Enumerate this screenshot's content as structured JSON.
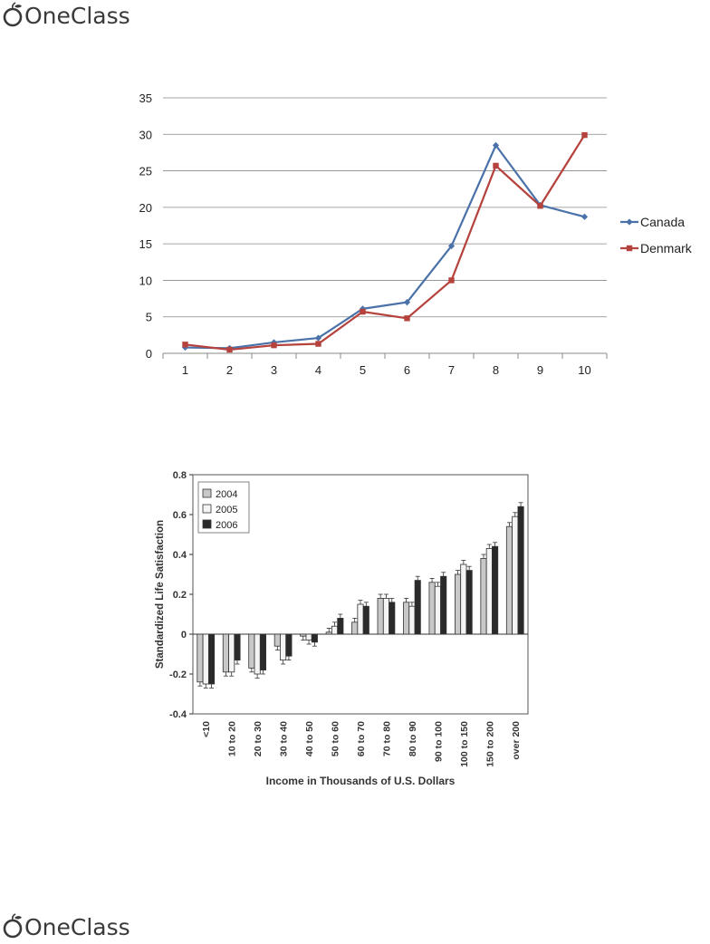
{
  "header": {
    "logo_text": "OneClass"
  },
  "footer": {
    "logo_text": "OneClass"
  },
  "chart_data": [
    {
      "type": "line",
      "x": [
        1,
        2,
        3,
        4,
        5,
        6,
        7,
        8,
        9,
        10
      ],
      "ylim": [
        0,
        35
      ],
      "yticks": [
        0,
        5,
        10,
        15,
        20,
        25,
        30,
        35
      ],
      "grid": true,
      "legend": "right",
      "series": [
        {
          "name": "Canada",
          "color": "#4a72a8",
          "marker": "diamond",
          "values": [
            0.8,
            0.7,
            1.5,
            2.1,
            6.1,
            7.0,
            14.7,
            28.5,
            20.3,
            18.7
          ]
        },
        {
          "name": "Denmark",
          "color": "#b5423d",
          "marker": "square",
          "values": [
            1.2,
            0.5,
            1.1,
            1.3,
            5.7,
            4.8,
            10.0,
            25.7,
            20.2,
            29.9
          ]
        }
      ]
    },
    {
      "type": "bar",
      "ylabel": "Standardized Life Satisfaction",
      "xlabel": "Income in Thousands of U.S. Dollars",
      "ylim": [
        -0.4,
        0.8
      ],
      "yticks": [
        "-0.4",
        "-0.2",
        "0",
        "0.2",
        "0.4",
        "0.6",
        "0.8"
      ],
      "legend": "top-left",
      "categories": [
        "<10",
        "10 to 20",
        "20 to 30",
        "30 to 40",
        "40 to 50",
        "50 to 60",
        "60 to 70",
        "70 to 80",
        "80 to 90",
        "90 to 100",
        "100 to 150",
        "150 to 200",
        "over 200"
      ],
      "series": [
        {
          "name": "2004",
          "color": "#c8c8c8",
          "values": [
            -0.24,
            -0.19,
            -0.17,
            -0.06,
            -0.01,
            0.01,
            0.06,
            0.18,
            0.16,
            0.26,
            0.3,
            0.38,
            0.54
          ]
        },
        {
          "name": "2005",
          "color": "#f4f4f4",
          "values": [
            -0.25,
            -0.19,
            -0.2,
            -0.13,
            -0.03,
            0.04,
            0.15,
            0.18,
            0.14,
            0.24,
            0.35,
            0.43,
            0.59
          ]
        },
        {
          "name": "2006",
          "color": "#2a2a2a",
          "values": [
            -0.25,
            -0.13,
            -0.18,
            -0.11,
            -0.04,
            0.08,
            0.14,
            0.16,
            0.27,
            0.29,
            0.32,
            0.44,
            0.64
          ]
        }
      ]
    }
  ]
}
